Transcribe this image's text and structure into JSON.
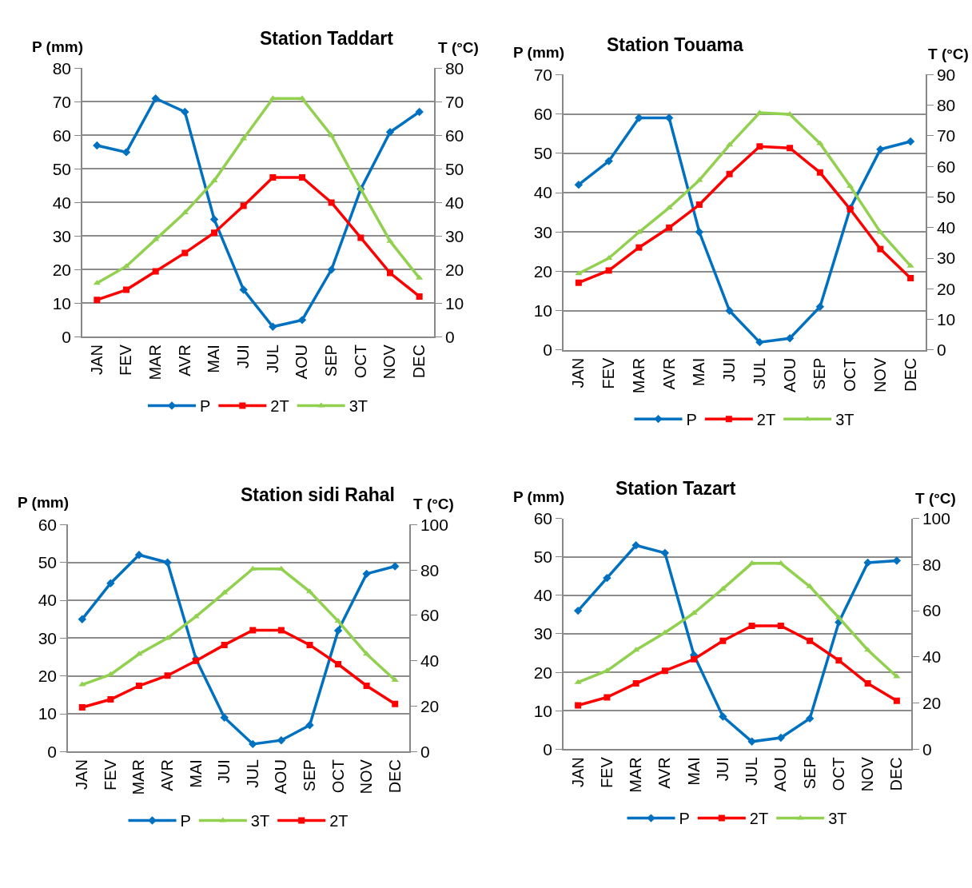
{
  "chart_data": [
    {
      "type": "line",
      "title": "Station Taddart",
      "ylabel": "P (mm)",
      "y2label": "T (°C)",
      "categories": [
        "JAN",
        "FEV",
        "MAR",
        "AVR",
        "MAI",
        "JUI",
        "JUL",
        "AOU",
        "SEP",
        "OCT",
        "NOV",
        "DEC"
      ],
      "ylim": [
        0,
        80
      ],
      "yticks": [
        0,
        10,
        20,
        30,
        40,
        50,
        60,
        70,
        80
      ],
      "y2lim": [
        0,
        80
      ],
      "y2ticks": [
        0,
        10,
        20,
        30,
        40,
        50,
        60,
        70,
        80
      ],
      "grid": "y",
      "legend": "bottom",
      "series": [
        {
          "name": "P",
          "color": "#0070c0",
          "marker": "diamond",
          "values": [
            57,
            55,
            71,
            67,
            35,
            14,
            3,
            5,
            20,
            44,
            61,
            67
          ]
        },
        {
          "name": "2T",
          "color": "#ff0000",
          "marker": "square",
          "axis": "y2",
          "values": [
            11,
            14,
            19.5,
            25,
            31,
            39,
            47.5,
            47.5,
            40,
            29.5,
            19,
            12
          ]
        },
        {
          "name": "3T",
          "color": "#92d050",
          "marker": "triangle",
          "axis": "y2",
          "values": [
            16,
            21,
            29,
            37,
            46.5,
            59,
            71,
            71,
            60,
            44,
            28.5,
            17.5
          ]
        }
      ]
    },
    {
      "type": "line",
      "title": "Station Touama",
      "ylabel": "P (mm)",
      "y2label": "T (°C)",
      "categories": [
        "JAN",
        "FEV",
        "MAR",
        "AVR",
        "MAI",
        "JUI",
        "JUL",
        "AOU",
        "SEP",
        "OCT",
        "NOV",
        "DEC"
      ],
      "ylim": [
        0,
        70
      ],
      "yticks": [
        0,
        10,
        20,
        30,
        40,
        50,
        60,
        70
      ],
      "y2lim": [
        0,
        90
      ],
      "y2ticks": [
        0,
        10,
        20,
        30,
        40,
        50,
        60,
        70,
        80,
        90
      ],
      "grid": "y",
      "legend": "bottom",
      "series": [
        {
          "name": "P",
          "color": "#0070c0",
          "marker": "diamond",
          "values": [
            42,
            48,
            59,
            59,
            30,
            10,
            2,
            3,
            11,
            36,
            51,
            53
          ]
        },
        {
          "name": "2T",
          "color": "#ff0000",
          "marker": "square",
          "axis": "y2",
          "values": [
            22,
            26,
            33.5,
            40,
            47.5,
            57.5,
            66.5,
            66,
            58,
            46,
            33,
            23.5
          ]
        },
        {
          "name": "3T",
          "color": "#92d050",
          "marker": "triangle",
          "axis": "y2",
          "values": [
            25,
            30,
            38.5,
            46.5,
            55.5,
            67,
            77.5,
            77,
            67.5,
            53.5,
            38.5,
            27.5
          ]
        }
      ]
    },
    {
      "type": "line",
      "title": "Station sidi Rahal",
      "ylabel": "P (mm)",
      "y2label": "T (°C)",
      "categories": [
        "JAN",
        "FEV",
        "MAR",
        "AVR",
        "MAI",
        "JUI",
        "JUL",
        "AOU",
        "SEP",
        "OCT",
        "NOV",
        "DEC"
      ],
      "ylim": [
        0,
        60
      ],
      "yticks": [
        0,
        10,
        20,
        30,
        40,
        50,
        60
      ],
      "y2lim": [
        0,
        100
      ],
      "y2ticks": [
        0,
        20,
        40,
        60,
        80,
        100
      ],
      "grid": "y",
      "legend": "bottom",
      "series": [
        {
          "name": "P",
          "color": "#0070c0",
          "marker": "diamond",
          "values": [
            35,
            44.5,
            52,
            50,
            24.5,
            9,
            2,
            3,
            7,
            32,
            47,
            49
          ]
        },
        {
          "name": "3T",
          "color": "#92d050",
          "marker": "triangle",
          "axis": "y2",
          "values": [
            29.5,
            34,
            43,
            50,
            59.5,
            70,
            80.5,
            80.5,
            70.5,
            57.5,
            43,
            31.5
          ]
        },
        {
          "name": "2T",
          "color": "#ff0000",
          "marker": "square",
          "axis": "y2",
          "values": [
            19.5,
            23,
            29,
            33.5,
            40,
            47,
            53.5,
            53.5,
            47,
            38.5,
            29,
            21
          ]
        }
      ]
    },
    {
      "type": "line",
      "title": "Station Tazart",
      "ylabel": "P (mm)",
      "y2label": "T (°C)",
      "categories": [
        "JAN",
        "FEV",
        "MAR",
        "AVR",
        "MAI",
        "JUI",
        "JUL",
        "AOU",
        "SEP",
        "OCT",
        "NOV",
        "DEC"
      ],
      "ylim": [
        0,
        60
      ],
      "yticks": [
        0,
        10,
        20,
        30,
        40,
        50,
        60
      ],
      "y2lim": [
        0,
        100
      ],
      "y2ticks": [
        0,
        20,
        40,
        60,
        80,
        100
      ],
      "grid": "y",
      "legend": "bottom",
      "series": [
        {
          "name": "P",
          "color": "#0070c0",
          "marker": "diamond",
          "values": [
            36,
            44.5,
            53,
            51,
            24.5,
            8.5,
            2,
            3,
            8,
            33,
            48.5,
            49
          ]
        },
        {
          "name": "2T",
          "color": "#ff0000",
          "marker": "square",
          "axis": "y2",
          "values": [
            19,
            22.5,
            28.5,
            34,
            39,
            47,
            53.5,
            53.5,
            47,
            38.5,
            28.5,
            21
          ]
        },
        {
          "name": "3T",
          "color": "#92d050",
          "marker": "triangle",
          "axis": "y2",
          "values": [
            29,
            34,
            43,
            50.5,
            59,
            69.5,
            80.5,
            80.5,
            70.5,
            57,
            43,
            31.5
          ]
        }
      ]
    }
  ]
}
